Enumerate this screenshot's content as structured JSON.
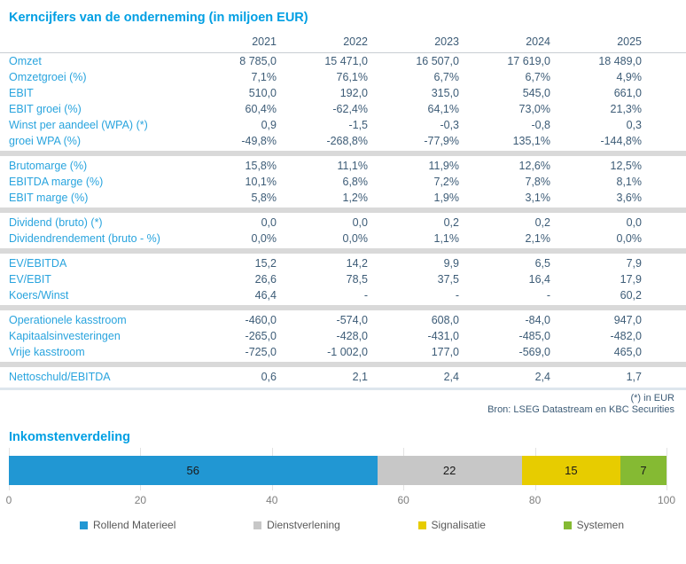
{
  "page": {
    "title": "Kerncijfers van de onderneming (in miljoen EUR)",
    "footnote": "(*) in EUR",
    "source": "Bron: LSEG Datastream en KBC Securities",
    "section2_title": "Inkomstenverdeling"
  },
  "colors": {
    "heading_blue": "#009fe3",
    "label_blue": "#29a4de",
    "value_dark": "#3d5c77",
    "separator_gray": "#d9d9d9"
  },
  "table": {
    "years": [
      "2021",
      "2022",
      "2023",
      "2024",
      "2025"
    ],
    "groups": [
      {
        "rows": [
          {
            "label": "Omzet",
            "values": [
              "8 785,0",
              "15 471,0",
              "16 507,0",
              "17 619,0",
              "18 489,0"
            ]
          },
          {
            "label": "Omzetgroei (%)",
            "values": [
              "7,1%",
              "76,1%",
              "6,7%",
              "6,7%",
              "4,9%"
            ]
          },
          {
            "label": "EBIT",
            "values": [
              "510,0",
              "192,0",
              "315,0",
              "545,0",
              "661,0"
            ]
          },
          {
            "label": "EBIT groei (%)",
            "values": [
              "60,4%",
              "-62,4%",
              "64,1%",
              "73,0%",
              "21,3%"
            ]
          },
          {
            "label": "Winst per aandeel (WPA) (*)",
            "values": [
              "0,9",
              "-1,5",
              "-0,3",
              "-0,8",
              "0,3"
            ]
          },
          {
            "label": "groei WPA (%)",
            "values": [
              "-49,8%",
              "-268,8%",
              "-77,9%",
              "135,1%",
              "-144,8%"
            ]
          }
        ]
      },
      {
        "rows": [
          {
            "label": "Brutomarge (%)",
            "values": [
              "15,8%",
              "11,1%",
              "11,9%",
              "12,6%",
              "12,5%"
            ]
          },
          {
            "label": "EBITDA marge (%)",
            "values": [
              "10,1%",
              "6,8%",
              "7,2%",
              "7,8%",
              "8,1%"
            ]
          },
          {
            "label": "EBIT marge (%)",
            "values": [
              "5,8%",
              "1,2%",
              "1,9%",
              "3,1%",
              "3,6%"
            ]
          }
        ]
      },
      {
        "rows": [
          {
            "label": "Dividend (bruto) (*)",
            "values": [
              "0,0",
              "0,0",
              "0,2",
              "0,2",
              "0,0"
            ]
          },
          {
            "label": "Dividendrendement (bruto - %)",
            "values": [
              "0,0%",
              "0,0%",
              "1,1%",
              "2,1%",
              "0,0%"
            ]
          }
        ]
      },
      {
        "rows": [
          {
            "label": "EV/EBITDA",
            "values": [
              "15,2",
              "14,2",
              "9,9",
              "6,5",
              "7,9"
            ]
          },
          {
            "label": "EV/EBIT",
            "values": [
              "26,6",
              "78,5",
              "37,5",
              "16,4",
              "17,9"
            ]
          },
          {
            "label": "Koers/Winst",
            "values": [
              "46,4",
              "-",
              "-",
              "-",
              "60,2"
            ]
          }
        ]
      },
      {
        "rows": [
          {
            "label": "Operationele kasstroom",
            "values": [
              "-460,0",
              "-574,0",
              "608,0",
              "-84,0",
              "947,0"
            ]
          },
          {
            "label": "Kapitaalsinvesteringen",
            "values": [
              "-265,0",
              "-428,0",
              "-431,0",
              "-485,0",
              "-482,0"
            ]
          },
          {
            "label": "Vrije kasstroom",
            "values": [
              "-725,0",
              "-1 002,0",
              "177,0",
              "-569,0",
              "465,0"
            ]
          }
        ]
      },
      {
        "rows": [
          {
            "label": "Nettoschuld/EBITDA",
            "values": [
              "0,6",
              "2,1",
              "2,4",
              "2,4",
              "1,7"
            ]
          }
        ]
      }
    ]
  },
  "chart_data": {
    "type": "bar",
    "variant": "horizontal-stacked",
    "title": "Inkomstenverdeling",
    "segments": [
      {
        "label": "Rollend Materieel",
        "value": 56,
        "color": "#2197d3"
      },
      {
        "label": "Dienstverlening",
        "value": 22,
        "color": "#c7c7c7"
      },
      {
        "label": "Signalisatie",
        "value": 15,
        "color": "#e7cc00"
      },
      {
        "label": "Systemen",
        "value": 7,
        "color": "#85ba33"
      }
    ],
    "xlim": [
      0,
      100
    ],
    "xticks": [
      0,
      20,
      40,
      60,
      80,
      100
    ],
    "grid": true,
    "legend_position": "bottom"
  }
}
